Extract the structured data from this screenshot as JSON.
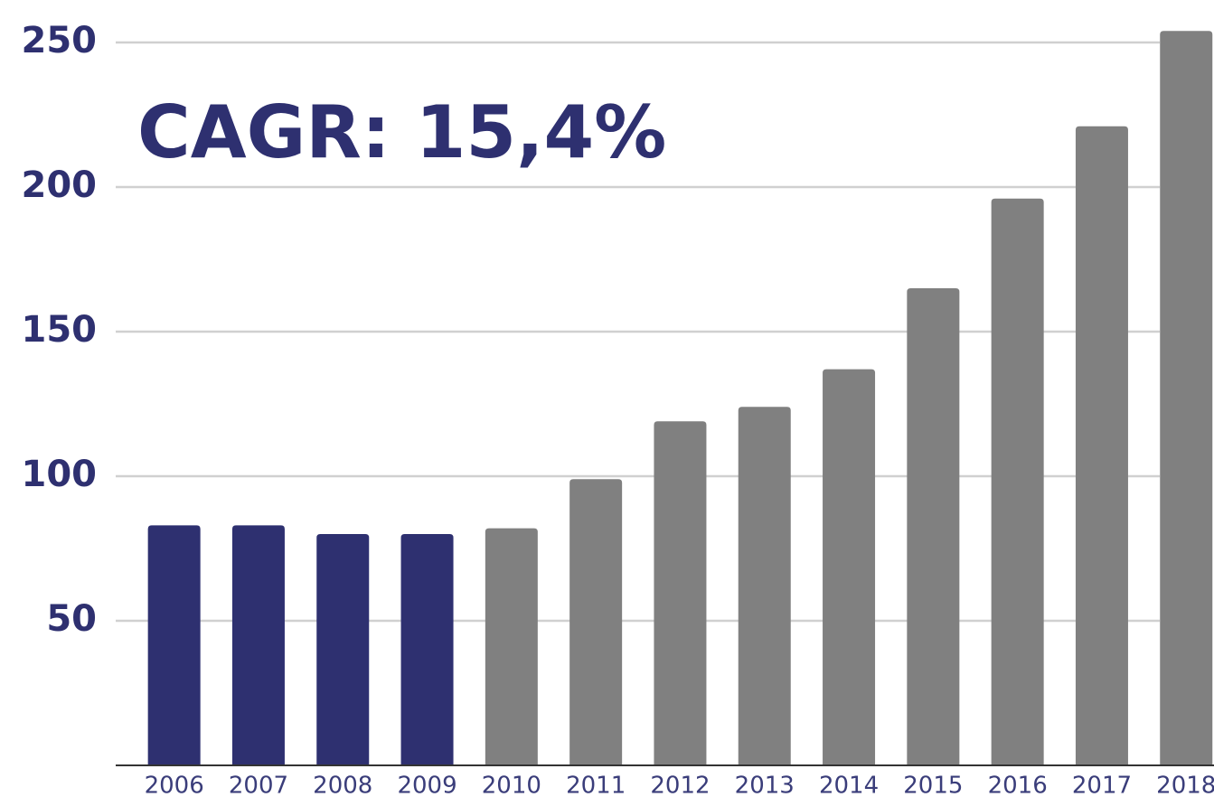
{
  "chart_data": {
    "type": "bar",
    "annotation": "CAGR: 15,4%",
    "categories": [
      "2006",
      "2007",
      "2008",
      "2009",
      "2010",
      "2011",
      "2012",
      "2013",
      "2014",
      "2015",
      "2016",
      "2017",
      "2018"
    ],
    "values": [
      83,
      83,
      80,
      80,
      82,
      99,
      119,
      124,
      137,
      165,
      196,
      221,
      254
    ],
    "colors": [
      "#2e3070",
      "#2e3070",
      "#2e3070",
      "#2e3070",
      "#808080",
      "#808080",
      "#808080",
      "#808080",
      "#808080",
      "#808080",
      "#808080",
      "#808080",
      "#808080"
    ],
    "ylim": [
      0,
      250
    ],
    "yticks": [
      50,
      100,
      150,
      200,
      250
    ],
    "grid": true
  }
}
